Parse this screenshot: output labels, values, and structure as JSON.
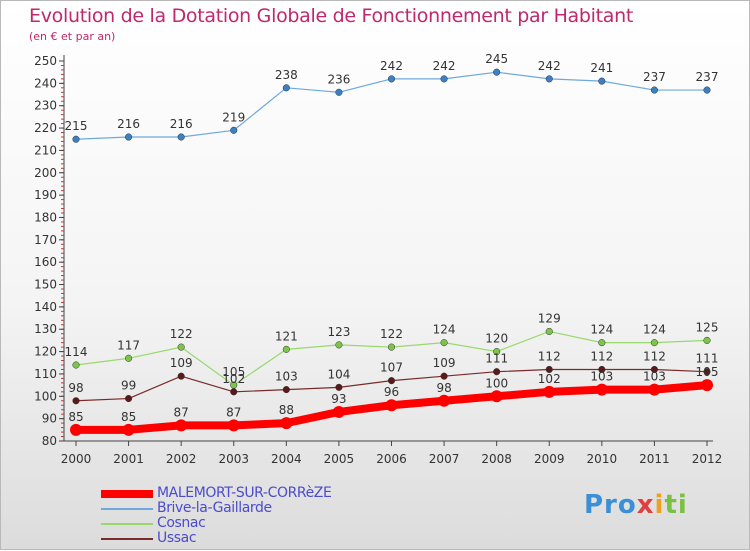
{
  "header": {
    "title": "Evolution de la Dotation Globale de Fonctionnement par Habitant",
    "subtitle": "(en € et par an)"
  },
  "logo": {
    "text": "Proxiti",
    "colors": [
      "#3a8fd6",
      "#f0a020",
      "#e04040",
      "#7ac143"
    ]
  },
  "chart_data": {
    "type": "line",
    "x": [
      "2000",
      "2001",
      "2002",
      "2003",
      "2004",
      "2005",
      "2006",
      "2007",
      "2008",
      "2009",
      "2010",
      "2011",
      "2012"
    ],
    "ylim": [
      80,
      250
    ],
    "yticks": [
      80,
      90,
      100,
      110,
      120,
      130,
      140,
      150,
      160,
      170,
      180,
      190,
      200,
      210,
      220,
      230,
      240,
      250
    ],
    "grid": false,
    "legend_position": "bottom-left",
    "series": [
      {
        "name": "MALEMORT-SUR-CORRèZE",
        "color": "#ff0000",
        "values": [
          85,
          85,
          87,
          87,
          88,
          93,
          96,
          98,
          100,
          102,
          103,
          103,
          105
        ]
      },
      {
        "name": "Brive-la-Gaillarde",
        "color": "#6fa8dc",
        "values": [
          215,
          216,
          216,
          219,
          238,
          236,
          242,
          242,
          245,
          242,
          241,
          237,
          237
        ]
      },
      {
        "name": "Cosnac",
        "color": "#99d96b",
        "values": [
          114,
          117,
          122,
          105,
          121,
          123,
          122,
          124,
          120,
          129,
          124,
          124,
          125
        ]
      },
      {
        "name": "Ussac",
        "color": "#7a2a2a",
        "values": [
          98,
          99,
          109,
          102,
          103,
          104,
          107,
          109,
          111,
          112,
          112,
          112,
          111
        ]
      }
    ]
  }
}
